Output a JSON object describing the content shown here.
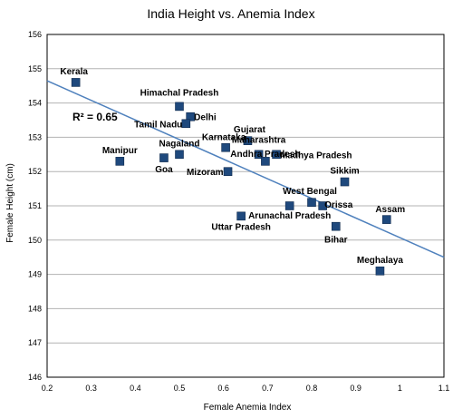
{
  "chart_data": {
    "type": "scatter",
    "title": "India Height vs. Anemia Index",
    "xlabel": "Female Anemia Index",
    "ylabel": "Female Height (cm)",
    "xlim": [
      0.2,
      1.1
    ],
    "ylim": [
      146,
      156
    ],
    "xticks": [
      "0.2",
      "0.3",
      "0.4",
      "0.5",
      "0.6",
      "0.7",
      "0.8",
      "0.9",
      "1",
      "1.1"
    ],
    "yticks": [
      "146",
      "147",
      "148",
      "149",
      "150",
      "151",
      "152",
      "153",
      "154",
      "155",
      "156"
    ],
    "grid": "horizontal",
    "marker_color": "#1f497d",
    "trendline": {
      "x": [
        0.2,
        1.1
      ],
      "y": [
        154.65,
        149.5
      ],
      "color": "#4f81bd"
    },
    "annotation": "R² = 0.65",
    "points": [
      {
        "label": "Kerala",
        "x": 0.265,
        "y": 154.6
      },
      {
        "label": "Himachal Pradesh",
        "x": 0.5,
        "y": 153.9
      },
      {
        "label": "Delhi",
        "x": 0.525,
        "y": 153.6
      },
      {
        "label": "Tamil Nadu",
        "x": 0.515,
        "y": 153.4
      },
      {
        "label": "Gujarat",
        "x": 0.655,
        "y": 152.9
      },
      {
        "label": "Karnataka",
        "x": 0.605,
        "y": 152.7
      },
      {
        "label": "Maharashtra",
        "x": 0.68,
        "y": 152.5
      },
      {
        "label": "Madhya Pradesh",
        "x": 0.72,
        "y": 152.5
      },
      {
        "label": "Nagaland",
        "x": 0.5,
        "y": 152.5
      },
      {
        "label": "Manipur",
        "x": 0.365,
        "y": 152.3
      },
      {
        "label": "Goa",
        "x": 0.465,
        "y": 152.4
      },
      {
        "label": "Andhra Pradesh",
        "x": 0.695,
        "y": 152.3
      },
      {
        "label": "Mizoram",
        "x": 0.61,
        "y": 152.0
      },
      {
        "label": "Sikkim",
        "x": 0.875,
        "y": 151.7
      },
      {
        "label": "West Bengal",
        "x": 0.8,
        "y": 151.1
      },
      {
        "label": "Orissa",
        "x": 0.825,
        "y": 151.0
      },
      {
        "label": "Arunachal Pradesh",
        "x": 0.75,
        "y": 151.0
      },
      {
        "label": "Uttar Pradesh",
        "x": 0.64,
        "y": 150.7
      },
      {
        "label": "Assam",
        "x": 0.97,
        "y": 150.6
      },
      {
        "label": "Bihar",
        "x": 0.855,
        "y": 150.4
      },
      {
        "label": "Meghalaya",
        "x": 0.955,
        "y": 149.1
      }
    ]
  }
}
